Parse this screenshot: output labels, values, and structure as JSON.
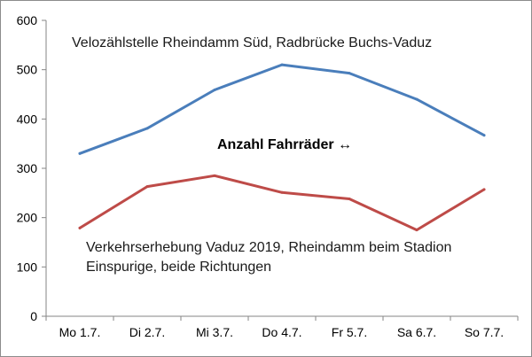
{
  "chart_data": {
    "type": "line",
    "categories": [
      "Mo 1.7.",
      "Di 2.7.",
      "Mi 3.7.",
      "Do 4.7.",
      "Fr 5.7.",
      "Sa 6.7.",
      "So 7.7."
    ],
    "ylim": [
      0,
      600
    ],
    "yticks": [
      "0",
      "100",
      "200",
      "300",
      "400",
      "500",
      "600"
    ],
    "grid": false,
    "series": [
      {
        "name": "Velozählstelle Rheindamm Süd, Radbrücke Buchs-Vaduz",
        "color": "#4a7ebb",
        "values": [
          330,
          381,
          459,
          510,
          493,
          440,
          367
        ]
      },
      {
        "name": "Verkehrserhebung  Vaduz 2019, Rheindamm beim Stadion",
        "color": "#be4b48",
        "values": [
          179,
          263,
          285,
          251,
          238,
          175,
          257
        ]
      }
    ],
    "annotations": {
      "center": "Anzahl Fahrräder ↔",
      "lower_line2": "Einspurige, beide Richtungen"
    }
  }
}
